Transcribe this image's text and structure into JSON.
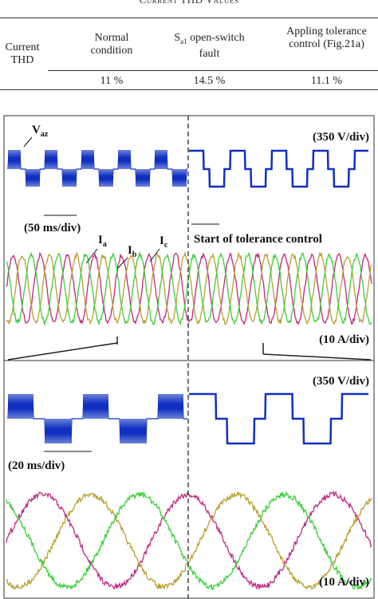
{
  "caption": "Current THD Values",
  "table": {
    "header": [
      "Current THD",
      "Normal condition",
      {
        "main": "S",
        "sub": "a1",
        "rest": " open-switch fault"
      },
      "Appling tolerance control (Fig.21a)"
    ],
    "rows": [
      [
        "11 %",
        "14.5 %",
        "11.1 %"
      ]
    ]
  },
  "figure": {
    "voltage_top": {
      "main": "V",
      "sub": "az"
    },
    "scale_v1": "(350 V/div)",
    "time_1": "(50 ms/div)",
    "i_a": {
      "main": "I",
      "sub": "a"
    },
    "i_b": {
      "main": "I",
      "sub": "b"
    },
    "i_c": {
      "main": "I",
      "sub": "c"
    },
    "start": "Start of tolerance control",
    "scale_i1": "(10 A/div)",
    "scale_v2": "(350 V/div)",
    "time_2": "(20 ms/div)",
    "scale_i2": "(10 A/div)"
  }
}
